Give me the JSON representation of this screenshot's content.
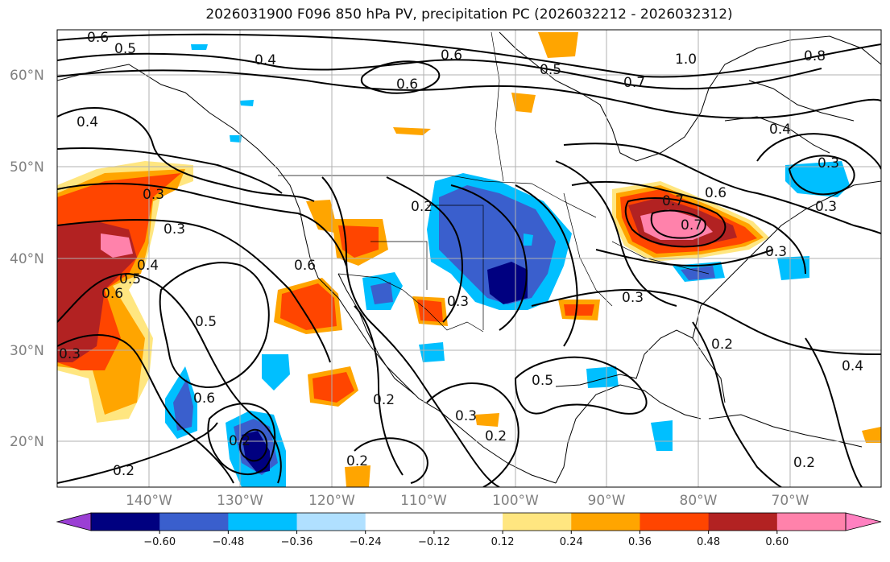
{
  "title": "2026031900 F096 850 hPa PV, precipitation PC (2026032212 - 2026032312)",
  "lat_labels": [
    "60°N",
    "50°N",
    "40°N",
    "30°N",
    "20°N"
  ],
  "lon_labels": [
    "140°W",
    "130°W",
    "120°W",
    "110°W",
    "100°W",
    "90°W",
    "80°W",
    "70°W"
  ],
  "colorbar": {
    "ticks": [
      "−0.60",
      "−0.48",
      "−0.36",
      "−0.24",
      "−0.12",
      "0.12",
      "0.24",
      "0.36",
      "0.48",
      "0.60"
    ],
    "colors": [
      "#9b3fd4",
      "#000080",
      "#3a5fcd",
      "#00bfff",
      "#b0e0ff",
      "#ffffff",
      "#ffe680",
      "#ffa500",
      "#ff4500",
      "#b22222",
      "#ff82ab",
      "#ff80c0"
    ]
  },
  "contour_labels": [
    "0.6",
    "0.5",
    "0.4",
    "0.6",
    "0.5",
    "1.0",
    "0.7",
    "0.8",
    "0.4",
    "0.3",
    "0.3",
    "0.3",
    "0.3",
    "0.2",
    "0.3",
    "0.4",
    "0.5",
    "0.6",
    "0.7",
    "0.6",
    "0.7",
    "0.6",
    "0.5",
    "0.5",
    "0.6",
    "0.3",
    "0.2",
    "0.2",
    "0.3",
    "0.3",
    "0.2",
    "0.2",
    "0.4",
    "0.2",
    "0.4",
    "0.2",
    "0.6",
    "0.3",
    "0.2"
  ]
}
